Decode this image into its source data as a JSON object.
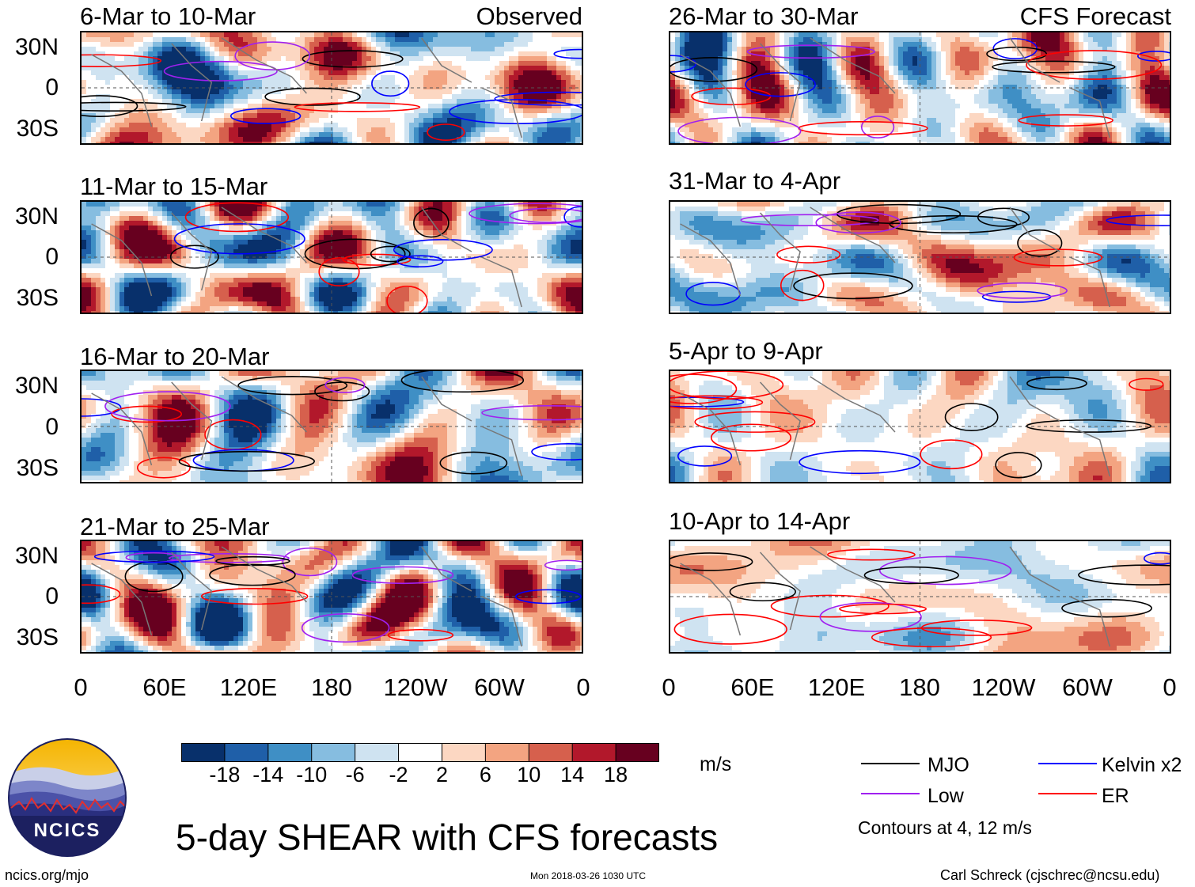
{
  "chart_data": {
    "type": "heatmap",
    "title": "5-day SHEAR with CFS forecasts",
    "units": "m/s",
    "x_tick_labels": [
      "0",
      "60E",
      "120E",
      "180",
      "120W",
      "60W",
      "0"
    ],
    "y_tick_labels": [
      "30N",
      "0",
      "30S"
    ],
    "x_range_degrees": [
      0,
      360
    ],
    "y_range_degrees": [
      -40,
      40
    ],
    "colorbar": {
      "ticks": [
        "-18",
        "-14",
        "-10",
        "-6",
        "-2",
        "2",
        "6",
        "10",
        "14",
        "18"
      ],
      "colors": [
        "#08306b",
        "#1f5fa8",
        "#3f8fc5",
        "#86bde0",
        "#cfe3f1",
        "#ffffff",
        "#fcd7c2",
        "#f3a481",
        "#d6604d",
        "#b2182b",
        "#67001f"
      ]
    },
    "legend": {
      "entries": [
        {
          "name": "MJO",
          "color": "#000000"
        },
        {
          "name": "Kelvin x2",
          "color": "#0000ff"
        },
        {
          "name": "Low",
          "color": "#a020f0"
        },
        {
          "name": "ER",
          "color": "#ff0000"
        }
      ],
      "note": "Contours at 4, 12 m/s"
    },
    "observed_panels": [
      {
        "title": "6-Mar to 10-Mar",
        "tag": "Observed"
      },
      {
        "title": "11-Mar to 15-Mar"
      },
      {
        "title": "16-Mar to 20-Mar"
      },
      {
        "title": "21-Mar to 25-Mar"
      }
    ],
    "forecast_panels": [
      {
        "title": "26-Mar to 30-Mar",
        "tag": "CFS Forecast"
      },
      {
        "title": "31-Mar to 4-Apr"
      },
      {
        "title": "5-Apr to 9-Apr"
      },
      {
        "title": "10-Apr to 14-Apr"
      }
    ]
  },
  "footer": {
    "logo_text": "NCICS",
    "url": "ncics.org/mjo",
    "timestamp": "Mon 2018-03-26 1030 UTC",
    "credit": "Carl Schreck (cjschrec@ncsu.edu)"
  }
}
